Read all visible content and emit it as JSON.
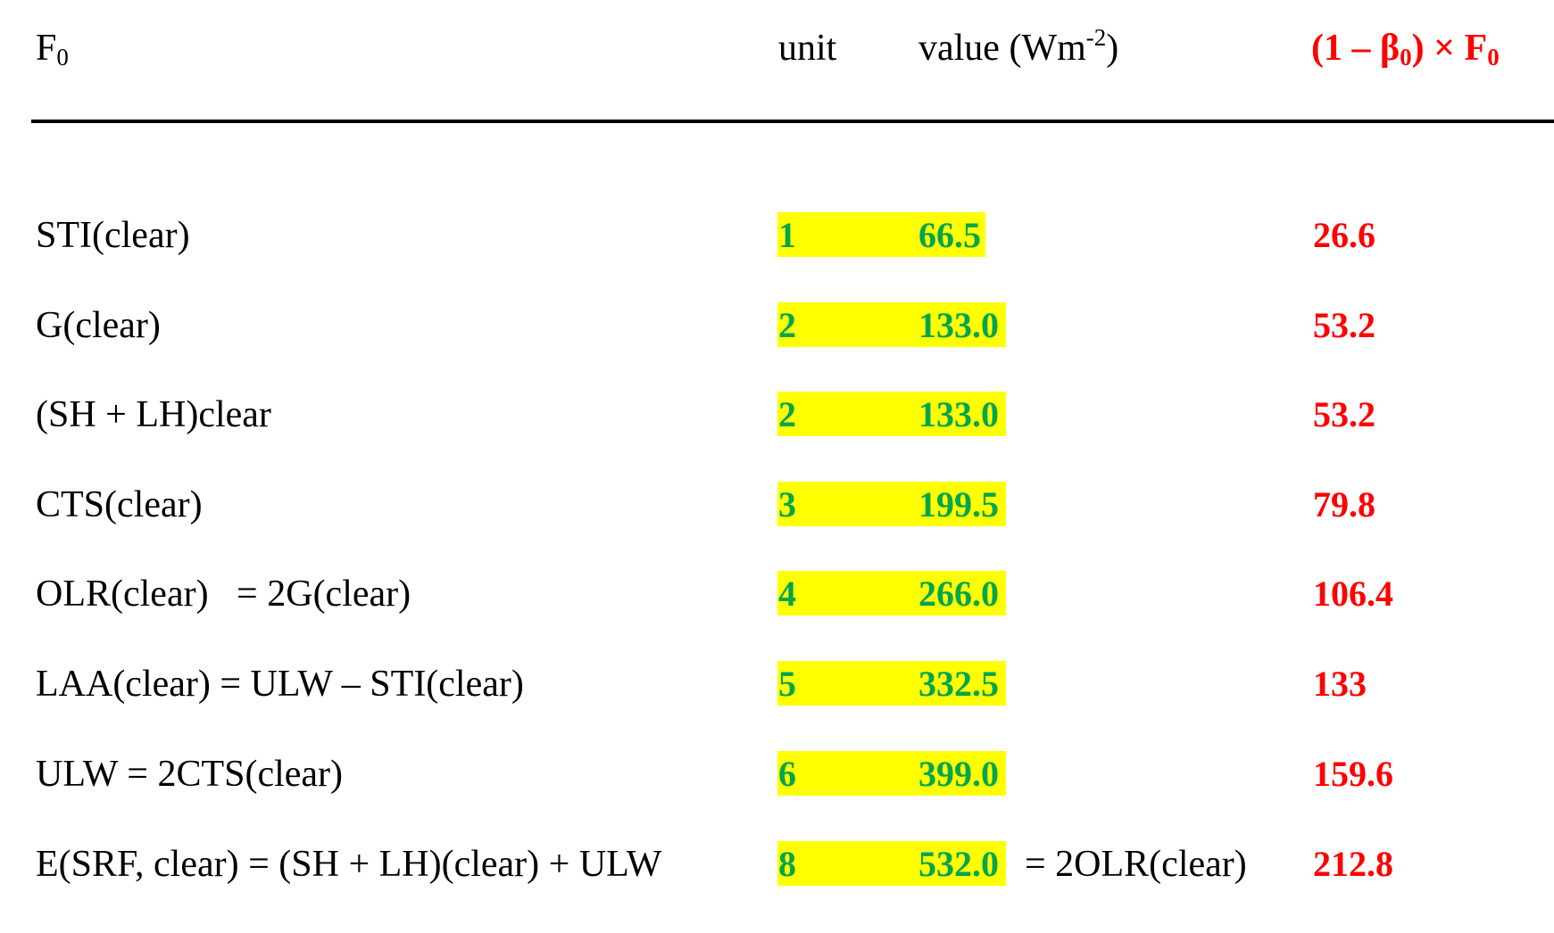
{
  "header": {
    "label": "F",
    "label_sub": "0",
    "unit": "unit",
    "value_prefix": "value (Wm",
    "value_exp": "-2",
    "value_suffix": ")",
    "result_prefix": "(1 – β",
    "result_sub1": "0",
    "result_mid": ") × F",
    "result_sub2": "0"
  },
  "rows": [
    {
      "label": "STI(clear)",
      "unit": "1",
      "value": "66.5",
      "note": "",
      "result": "26.6"
    },
    {
      "label": "G(clear)",
      "unit": "2",
      "value": "133.0",
      "note": "",
      "result": "53.2"
    },
    {
      "label": "(SH + LH)clear",
      "unit": "2",
      "value": "133.0",
      "note": "",
      "result": "53.2"
    },
    {
      "label": "CTS(clear)",
      "unit": "3",
      "value": "199.5",
      "note": "",
      "result": "79.8"
    },
    {
      "label": "OLR(clear)   = 2G(clear)",
      "unit": "4",
      "value": "266.0",
      "note": "",
      "result": "106.4"
    },
    {
      "label": "LAA(clear) = ULW – STI(clear)",
      "unit": "5",
      "value": "332.5",
      "note": "",
      "result": "133"
    },
    {
      "label": "ULW = 2CTS(clear)",
      "unit": "6",
      "value": "399.0",
      "note": "",
      "result": "159.6"
    },
    {
      "label": "E(SRF, clear) = (SH + LH)(clear) + ULW",
      "unit": "8",
      "value": "532.0",
      "note": "= 2OLR(clear)",
      "result": "212.8"
    }
  ],
  "colors": {
    "highlight": "#ffff00",
    "value_text": "#00a550",
    "result_text": "#ff0000",
    "rule": "#000000"
  }
}
